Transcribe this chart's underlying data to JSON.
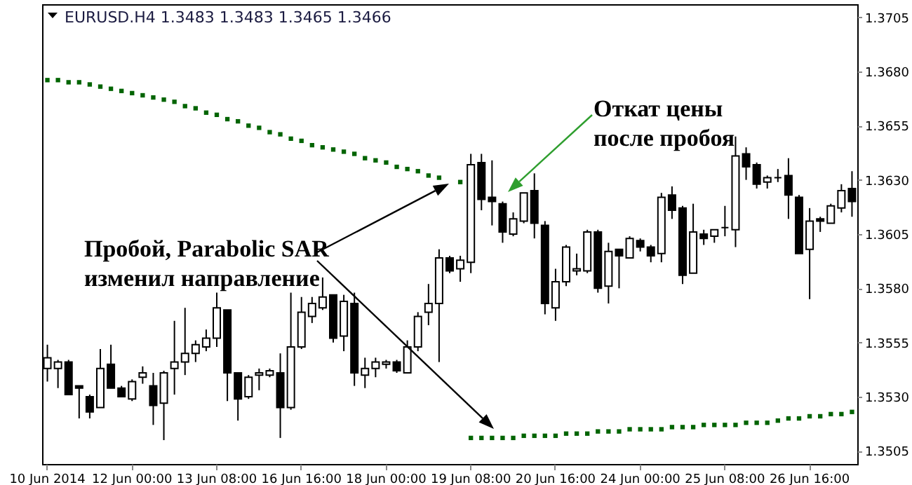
{
  "chart_data": {
    "type": "candlestick",
    "title": "EURUSD.H4  1.3483 1.3483 1.3465 1.3466",
    "color": "#000000",
    "marker": "square",
    "categories": [
      "10 Jun 2014",
      null,
      null,
      null,
      null,
      null,
      null,
      null,
      "12 Jun 00:00",
      null,
      null,
      null,
      null,
      null,
      null,
      null,
      "13 Jun 08:00",
      null,
      null,
      null,
      null,
      null,
      null,
      null,
      "16 Jun 16:00",
      null,
      null,
      null,
      null,
      null,
      null,
      null,
      "18 Jun 00:00",
      null,
      null,
      null,
      null,
      null,
      null,
      null,
      "19 Jun 08:00",
      null,
      null,
      null,
      null,
      null,
      null,
      null,
      "20 Jun 16:00",
      null,
      null,
      null,
      null,
      null,
      null,
      null,
      "24 Jun 00:00",
      null,
      null,
      null,
      null,
      null,
      null,
      null,
      "25 Jun 08:00",
      null,
      null,
      null,
      null,
      null,
      null,
      null,
      "26 Jun 16:00",
      null,
      null,
      null,
      null
    ],
    "ohlc": [
      [
        1.3543,
        1.3554,
        1.3537,
        1.3548
      ],
      [
        1.3543,
        1.3547,
        1.3534,
        1.3546
      ],
      [
        1.3546,
        1.3547,
        1.3531,
        1.3531
      ],
      [
        1.3535,
        1.3535,
        1.352,
        1.3534
      ],
      [
        1.353,
        1.3531,
        1.352,
        1.3523
      ],
      [
        1.3525,
        1.3552,
        1.3525,
        1.3543
      ],
      [
        1.3545,
        1.3554,
        1.3534,
        1.3534
      ],
      [
        1.3534,
        1.3535,
        1.353,
        1.353
      ],
      [
        1.3529,
        1.3538,
        1.3528,
        1.3537
      ],
      [
        1.3539,
        1.3544,
        1.3536,
        1.3541
      ],
      [
        1.3535,
        1.3541,
        1.3517,
        1.3526
      ],
      [
        1.3527,
        1.3542,
        1.351,
        1.3541
      ],
      [
        1.3543,
        1.3565,
        1.3531,
        1.3546
      ],
      [
        1.3546,
        1.3571,
        1.354,
        1.355
      ],
      [
        1.355,
        1.3556,
        1.3546,
        1.3554
      ],
      [
        1.3553,
        1.3561,
        1.3551,
        1.3557
      ],
      [
        1.3557,
        1.3578,
        1.3553,
        1.3571
      ],
      [
        1.357,
        1.357,
        1.3528,
        1.3541
      ],
      [
        1.3541,
        1.3541,
        1.3519,
        1.3529
      ],
      [
        1.353,
        1.354,
        1.3529,
        1.3539
      ],
      [
        1.354,
        1.3543,
        1.3533,
        1.3541
      ],
      [
        1.354,
        1.3543,
        1.3539,
        1.3542
      ],
      [
        1.3541,
        1.355,
        1.3511,
        1.3525
      ],
      [
        1.3525,
        1.3578,
        1.3524,
        1.3553
      ],
      [
        1.3553,
        1.3576,
        1.3552,
        1.3569
      ],
      [
        1.3567,
        1.3576,
        1.3564,
        1.3573
      ],
      [
        1.3571,
        1.3585,
        1.357,
        1.3576
      ],
      [
        1.3577,
        1.3577,
        1.3555,
        1.3557
      ],
      [
        1.3558,
        1.3577,
        1.3551,
        1.3574
      ],
      [
        1.3573,
        1.3578,
        1.3535,
        1.3541
      ],
      [
        1.354,
        1.3548,
        1.3534,
        1.3543
      ],
      [
        1.3543,
        1.3548,
        1.3539,
        1.3546
      ],
      [
        1.3545,
        1.3547,
        1.3543,
        1.3546
      ],
      [
        1.3546,
        1.3547,
        1.3541,
        1.3542
      ],
      [
        1.3541,
        1.3556,
        1.3541,
        1.3553
      ],
      [
        1.3553,
        1.3569,
        1.3551,
        1.3567
      ],
      [
        1.3569,
        1.3582,
        1.3563,
        1.3573
      ],
      [
        1.3573,
        1.3598,
        1.3546,
        1.3594
      ],
      [
        1.3594,
        1.3595,
        1.3587,
        1.3588
      ],
      [
        1.3589,
        1.3595,
        1.3583,
        1.3593
      ],
      [
        1.3592,
        1.3642,
        1.3587,
        1.3637
      ],
      [
        1.3638,
        1.3642,
        1.3616,
        1.3621
      ],
      [
        1.3622,
        1.3639,
        1.3609,
        1.362
      ],
      [
        1.3619,
        1.362,
        1.3601,
        1.3606
      ],
      [
        1.3605,
        1.3615,
        1.3604,
        1.3612
      ],
      [
        1.3611,
        1.3624,
        1.361,
        1.3624
      ],
      [
        1.3625,
        1.3633,
        1.3603,
        1.361
      ],
      [
        1.3609,
        1.3611,
        1.3568,
        1.3573
      ],
      [
        1.3571,
        1.3589,
        1.3565,
        1.3583
      ],
      [
        1.3583,
        1.36,
        1.3581,
        1.3599
      ],
      [
        1.3588,
        1.3596,
        1.3586,
        1.3589
      ],
      [
        1.3588,
        1.3607,
        1.3587,
        1.3606
      ],
      [
        1.3606,
        1.3607,
        1.3578,
        1.358
      ],
      [
        1.3581,
        1.3601,
        1.3573,
        1.3597
      ],
      [
        1.3598,
        1.3598,
        1.358,
        1.3595
      ],
      [
        1.3594,
        1.3604,
        1.3594,
        1.3603
      ],
      [
        1.3602,
        1.3603,
        1.3597,
        1.3599
      ],
      [
        1.3599,
        1.36,
        1.3592,
        1.3595
      ],
      [
        1.3596,
        1.3624,
        1.3592,
        1.3622
      ],
      [
        1.3623,
        1.3627,
        1.3612,
        1.3616
      ],
      [
        1.3617,
        1.3618,
        1.3582,
        1.3586
      ],
      [
        1.3587,
        1.3619,
        1.3587,
        1.3606
      ],
      [
        1.3605,
        1.3607,
        1.36,
        1.3603
      ],
      [
        1.3604,
        1.3607,
        1.3601,
        1.3607
      ],
      [
        1.3608,
        1.3618,
        1.3604,
        1.3608
      ],
      [
        1.3607,
        1.365,
        1.3599,
        1.3641
      ],
      [
        1.3642,
        1.3645,
        1.363,
        1.3636
      ],
      [
        1.3637,
        1.3638,
        1.3626,
        1.3628
      ],
      [
        1.3629,
        1.3632,
        1.3626,
        1.3631
      ],
      [
        1.3631,
        1.3635,
        1.3629,
        1.3631
      ],
      [
        1.3632,
        1.364,
        1.3612,
        1.3623
      ],
      [
        1.3622,
        1.3623,
        1.3596,
        1.3596
      ],
      [
        1.3598,
        1.3617,
        1.3575,
        1.3611
      ],
      [
        1.3612,
        1.3613,
        1.3606,
        1.3611
      ],
      [
        1.361,
        1.3619,
        1.361,
        1.3618
      ],
      [
        1.3617,
        1.3628,
        1.3615,
        1.3625
      ],
      [
        1.3626,
        1.3634,
        1.3613,
        1.362
      ]
    ],
    "series": [
      {
        "type": "scatter",
        "color": "#006400",
        "values": [
          1.3676,
          1.3676,
          1.3675,
          1.3675,
          1.3674,
          1.3673,
          1.3672,
          1.3671,
          1.367,
          1.3669,
          1.3668,
          1.3667,
          1.3666,
          1.3664,
          1.3663,
          1.3661,
          1.366,
          1.3658,
          1.3657,
          1.3655,
          1.3654,
          1.3652,
          1.3651,
          1.3649,
          1.3648,
          1.3646,
          1.3645,
          1.3644,
          1.3643,
          1.3642,
          1.364,
          1.3639,
          1.3638,
          1.3636,
          1.3635,
          1.3634,
          1.3632,
          1.3631,
          null,
          1.3629,
          1.3511,
          1.3511,
          1.3511,
          1.3511,
          1.3511,
          1.3512,
          1.3512,
          1.3512,
          1.3512,
          1.3513,
          1.3513,
          1.3513,
          1.3514,
          1.3514,
          1.3514,
          1.3515,
          1.3515,
          1.3515,
          1.3515,
          1.3516,
          1.3516,
          1.3516,
          1.3517,
          1.3517,
          1.3517,
          1.3517,
          1.3518,
          1.3518,
          1.3518,
          1.3519,
          1.352,
          1.352,
          1.3521,
          1.3521,
          1.3522,
          1.3522,
          1.3523
        ]
      }
    ],
    "ylim": [
      1.3499,
      1.3711
    ],
    "yticks": [
      1.3505,
      {
        "value": 1.353,
        "label": "1.3530"
      },
      1.3555,
      {
        "value": 1.358,
        "label": "1.3580"
      },
      1.3605,
      {
        "value": 1.363,
        "label": "1.3630"
      },
      1.3655,
      {
        "value": 1.368,
        "label": "1.3680"
      },
      1.3705
    ],
    "annotations": [
      "Пробой, Parabolic SAR\nизменил направление",
      "Откат цены\nпосле пробоя"
    ]
  }
}
